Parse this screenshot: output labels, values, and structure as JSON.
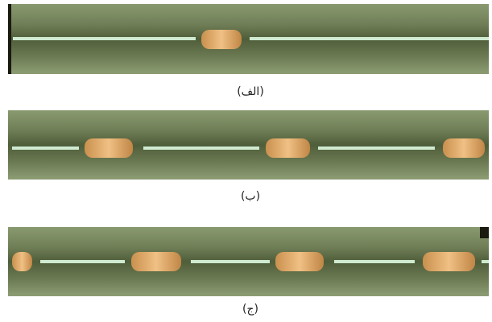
{
  "panels": [
    {
      "label": "(الف)"
    },
    {
      "label": "(ب)"
    },
    {
      "label": "(ج)"
    }
  ]
}
